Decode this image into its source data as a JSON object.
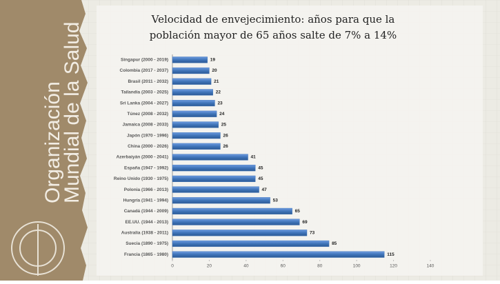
{
  "organization": [
    "Organización",
    "Mundial de la Salud"
  ],
  "chart_data": {
    "type": "bar",
    "orientation": "horizontal",
    "title": [
      "Velocidad de envejecimiento: años para que la",
      "población mayor de 65 años salte de 7% a 14%"
    ],
    "categories": [
      "Singapur (2000 - 2019)",
      "Colombia (2017 - 2037)",
      "Brasil (2011 - 2032)",
      "Tailandia (2003 - 2025)",
      "Sri Lanka (2004 - 2027)",
      "Túnez (2008 - 2032)",
      "Jamaica (2008 - 2033)",
      "Japón (1970 - 1996)",
      "China (2000 - 2026)",
      "Azerbaiyán (2000 - 2041)",
      "España (1947 - 1992)",
      "Reino Unido (1930 - 1975)",
      "Polonia (1966 - 2013)",
      "Hungría (1941 - 1994)",
      "Canadá (1944 - 2009)",
      "EE.UU. (1944 - 2013)",
      "Australia (1938 - 2011)",
      "Suecia (1890 - 1975)",
      "Francia (1865 - 1980)"
    ],
    "values": [
      19,
      20,
      21,
      22,
      23,
      24,
      25,
      26,
      26,
      41,
      45,
      45,
      47,
      53,
      65,
      69,
      73,
      85,
      115
    ],
    "color": "#3f74b8",
    "xlim": [
      0,
      140
    ],
    "xticks": [
      0,
      20,
      40,
      60,
      80,
      100,
      120,
      140
    ]
  }
}
